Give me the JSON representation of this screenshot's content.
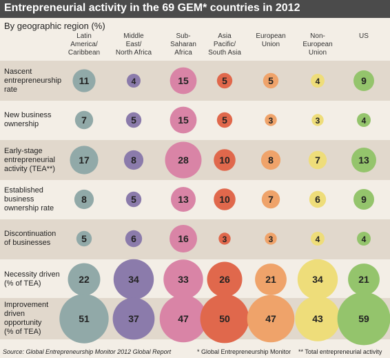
{
  "title": "Entrepreneurial activity in the 69 GEM* countries in 2012",
  "subtitle": "By geographic region (%)",
  "footer": {
    "source": "Source: Global Entrepreneurship Monitor 2012 Global Report",
    "note1": "* Global Entrepreneurship Monitor",
    "note2": "** Total entrepreneurial activity"
  },
  "colors": {
    "title_bar": "#4b4b4b",
    "background": "#f3eee6",
    "band": "#e1d8cc",
    "regions": [
      "#91a9a8",
      "#8b7bab",
      "#d984a6",
      "#e0684c",
      "#efa36a",
      "#eedd7a",
      "#94c46c"
    ]
  },
  "chart_data": {
    "type": "bubble",
    "title": "Entrepreneurial activity in the 69 GEM* countries in 2012",
    "subtitle": "By geographic region (%)",
    "regions": [
      [
        "Latin",
        "America/",
        "Caribbean"
      ],
      [
        "Middle",
        "East/",
        "North Africa"
      ],
      [
        "Sub-",
        "Saharan",
        "Africa"
      ],
      [
        "Asia",
        "Pacific/",
        "South Asia"
      ],
      [
        "European",
        "Union"
      ],
      [
        "Non-",
        "European",
        "Union"
      ],
      [
        "US"
      ]
    ],
    "rows": [
      {
        "label": [
          "Nascent",
          "entrepreneurship",
          "rate"
        ],
        "values": [
          11,
          4,
          15,
          5,
          5,
          4,
          9
        ]
      },
      {
        "label": [
          "New business",
          "ownership"
        ],
        "values": [
          7,
          5,
          15,
          5,
          3,
          3,
          4
        ]
      },
      {
        "label": [
          "Early-stage",
          "entrepreneurial",
          "activity (TEA**)"
        ],
        "values": [
          17,
          8,
          28,
          10,
          8,
          7,
          13
        ]
      },
      {
        "label": [
          "Established",
          "business",
          "ownership rate"
        ],
        "values": [
          8,
          5,
          13,
          10,
          7,
          6,
          9
        ]
      },
      {
        "label": [
          "Discontinuation",
          "of businesses"
        ],
        "values": [
          5,
          6,
          16,
          3,
          3,
          4,
          4
        ]
      },
      {
        "label": [
          "Necessity driven",
          "(% of TEA)"
        ],
        "values": [
          22,
          34,
          33,
          26,
          21,
          34,
          21
        ]
      },
      {
        "label": [
          "Improvement",
          "driven",
          "opportunity",
          "(% of TEA)"
        ],
        "values": [
          51,
          37,
          47,
          50,
          47,
          43,
          59
        ]
      }
    ]
  }
}
